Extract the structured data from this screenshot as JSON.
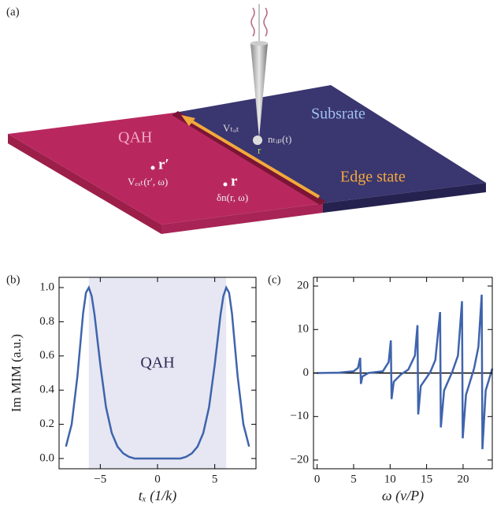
{
  "diagram": {
    "panel_label": "(a)",
    "qah": "QAH",
    "substrate": "Subsrate",
    "edge_state": "Edge state",
    "v_tot": "Vₜₒₜ",
    "n_tip": "nₜᵢₚ(t)",
    "r_prime": "r′",
    "v_ext": "Vₑₓₜ(r′, ω)",
    "r": "r",
    "delta_n": "δn(r, ω)",
    "tip_r": "r"
  },
  "chart_data": [
    {
      "type": "line",
      "panel_label": "(b)",
      "xlabel": "tₓ (1/k)",
      "ylabel": "Im MIM (a.u.)",
      "annotation": "QAH",
      "shade": [
        -6,
        6
      ],
      "series": [
        {
          "color": "#3f64ad",
          "x": [
            -8,
            -7.5,
            -7,
            -6.5,
            -6.25,
            -6,
            -5.75,
            -5.5,
            -5,
            -4.5,
            -4,
            -3.5,
            -3,
            -2.5,
            -2,
            -1,
            0,
            1,
            2,
            2.5,
            3,
            3.5,
            4,
            4.5,
            5,
            5.5,
            5.75,
            6,
            6.25,
            6.5,
            7,
            7.5,
            8
          ],
          "values": [
            0.07,
            0.2,
            0.48,
            0.85,
            0.97,
            1.0,
            0.95,
            0.84,
            0.55,
            0.3,
            0.15,
            0.07,
            0.03,
            0.01,
            0.0,
            0.0,
            0.0,
            0.0,
            0.0,
            0.01,
            0.03,
            0.07,
            0.15,
            0.3,
            0.55,
            0.84,
            0.95,
            1.0,
            0.97,
            0.85,
            0.48,
            0.2,
            0.07
          ]
        }
      ],
      "xlim": [
        -8.6,
        8.6
      ],
      "xticks": [
        {
          "value": -5,
          "label": "−5"
        },
        0,
        5
      ],
      "ylim": [
        -0.06,
        1.06
      ],
      "yticks": [
        {
          "value": 0,
          "label": "0.0"
        },
        {
          "value": 0.2,
          "label": "0.2"
        },
        {
          "value": 0.4,
          "label": "0.4"
        },
        {
          "value": 0.6,
          "label": "0.6"
        },
        {
          "value": 0.8,
          "label": "0.8"
        },
        {
          "value": 1,
          "label": "1.0"
        }
      ]
    },
    {
      "type": "line",
      "panel_label": "(c)",
      "xlabel": "ω (v/P)",
      "zero_line": true,
      "series": [
        {
          "color": "#3f64ad",
          "x": [
            0,
            3,
            5,
            5.6,
            5.9,
            6.0,
            6.2,
            7,
            9,
            9.8,
            10.1,
            10.2,
            10.5,
            11.5,
            12.5,
            13.4,
            13.75,
            13.85,
            14.2,
            15.5,
            16.2,
            16.85,
            16.95,
            17.4,
            18.5,
            19.3,
            19.85,
            19.95,
            20.4,
            21.5,
            22.1,
            22.55,
            22.65,
            23.1,
            24
          ],
          "values": [
            0,
            0.1,
            0.4,
            1.2,
            3.5,
            -2.5,
            -0.8,
            0,
            0.4,
            2.5,
            7.5,
            -6,
            -2,
            -0.3,
            0.8,
            4,
            11,
            -9.5,
            -3,
            0.2,
            3,
            14,
            -12.5,
            -4,
            0.2,
            4,
            16.5,
            -15,
            -5,
            1,
            6,
            18,
            -17.5,
            -4,
            1
          ]
        }
      ],
      "xlim": [
        -0.5,
        24
      ],
      "xticks": [
        0,
        5,
        10,
        15,
        20
      ],
      "ylim": [
        -22,
        22
      ],
      "yticks": [
        {
          "value": -20,
          "label": "−20"
        },
        {
          "value": -10,
          "label": "−10"
        },
        0,
        10,
        20
      ]
    }
  ]
}
